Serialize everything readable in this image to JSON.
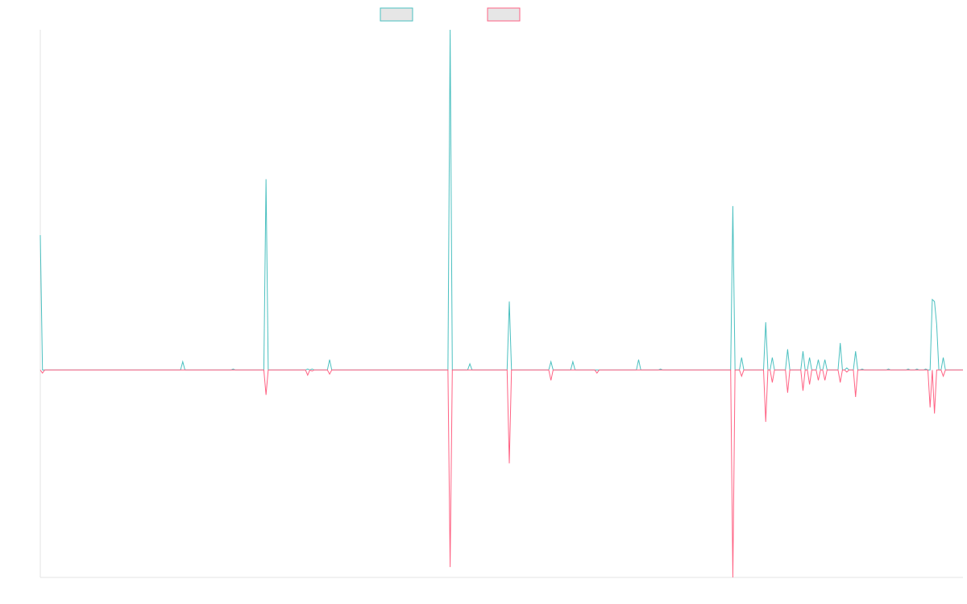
{
  "chart_data": {
    "type": "line",
    "title": "",
    "xlabel": "",
    "ylabel": "",
    "grid": false,
    "legend_position": "top-center",
    "x_count": 422,
    "ylim": [
      -100,
      164
    ],
    "baseline": 0,
    "series": [
      {
        "color": "#4BC0C0",
        "legend_fill": "#e6e6e6",
        "spikes": [
          [
            0,
            65
          ],
          [
            1,
            0
          ],
          [
            65,
            4
          ],
          [
            88,
            0.5
          ],
          [
            103,
            92
          ],
          [
            122,
            0.5
          ],
          [
            124,
            0.5
          ],
          [
            132,
            5
          ],
          [
            187,
            164
          ],
          [
            196,
            3
          ],
          [
            214,
            33
          ],
          [
            233,
            4
          ],
          [
            243,
            4
          ],
          [
            254,
            0
          ],
          [
            273,
            5
          ],
          [
            283,
            0.5
          ],
          [
            316,
            79
          ],
          [
            320,
            6
          ],
          [
            331,
            23
          ],
          [
            334,
            6
          ],
          [
            341,
            10
          ],
          [
            348,
            9
          ],
          [
            351,
            6
          ],
          [
            355,
            5
          ],
          [
            358,
            5
          ],
          [
            365,
            13
          ],
          [
            368,
            1
          ],
          [
            372,
            9
          ],
          [
            375,
            0.5
          ],
          [
            387,
            0.5
          ],
          [
            396,
            0.5
          ],
          [
            400,
            0.5
          ],
          [
            404,
            0.5
          ],
          [
            407,
            34
          ],
          [
            408,
            33
          ],
          [
            409,
            22
          ],
          [
            412,
            6
          ]
        ]
      },
      {
        "color": "#FF6384",
        "legend_fill": "#e6e6e6",
        "spikes": [
          [
            1,
            -1.5
          ],
          [
            103,
            -12
          ],
          [
            122,
            -2.5
          ],
          [
            124,
            -0.5
          ],
          [
            132,
            -2
          ],
          [
            187,
            -95
          ],
          [
            214,
            -45
          ],
          [
            233,
            -5
          ],
          [
            254,
            -1.5
          ],
          [
            316,
            -100
          ],
          [
            320,
            -3
          ],
          [
            331,
            -25
          ],
          [
            334,
            -6
          ],
          [
            341,
            -11
          ],
          [
            348,
            -10
          ],
          [
            351,
            -7
          ],
          [
            355,
            -5
          ],
          [
            358,
            -5
          ],
          [
            365,
            -6
          ],
          [
            368,
            -1
          ],
          [
            372,
            -13
          ],
          [
            406,
            -18
          ],
          [
            408,
            -21
          ],
          [
            412,
            -3
          ]
        ]
      }
    ]
  }
}
